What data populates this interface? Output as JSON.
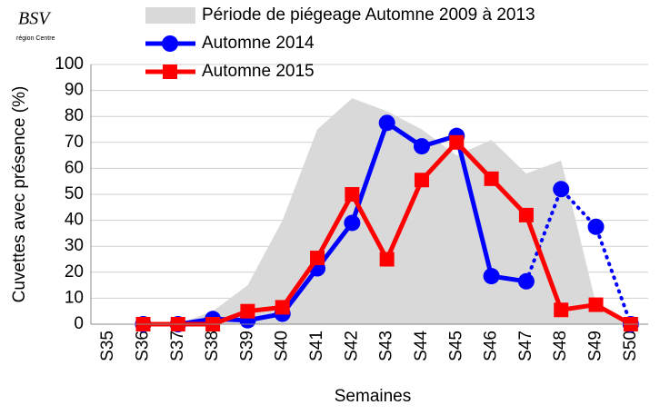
{
  "chart_data": {
    "type": "line",
    "logo": {
      "title": "BSV",
      "subtitle": "région Centre"
    },
    "y_label": "Cuvettes avec présence (%)",
    "x_label": "Semaines",
    "categories": [
      "S35",
      "S36",
      "S37",
      "S38",
      "S39",
      "S40",
      "S41",
      "S42",
      "S43",
      "S44",
      "S45",
      "S46",
      "S47",
      "S48",
      "S49",
      "S50"
    ],
    "series": [
      {
        "name": "Période de piégeage Automne 2009 à 2013",
        "kind": "area",
        "color": "#d9d9d9",
        "values": [
          0,
          0,
          0,
          5,
          15,
          40,
          75,
          87,
          82,
          75,
          65,
          71,
          58,
          63,
          8,
          0
        ]
      },
      {
        "name": "Automne 2014",
        "kind": "line",
        "marker": "circle",
        "color": "#0000ff",
        "dotted_from": "S47",
        "values": [
          null,
          0,
          0,
          2,
          1.5,
          4,
          21.5,
          39,
          77.5,
          68.5,
          72.5,
          18.5,
          16.5,
          52,
          37.5,
          0
        ]
      },
      {
        "name": "Automne 2015",
        "kind": "line",
        "marker": "square",
        "color": "#ff0000",
        "values": [
          null,
          0,
          0,
          0,
          5,
          6.5,
          25.5,
          50,
          25,
          55.5,
          70,
          56,
          42,
          5.5,
          7.5,
          0
        ]
      }
    ],
    "ylim": [
      0,
      100
    ],
    "yticks": [
      0,
      10,
      20,
      30,
      40,
      50,
      60,
      70,
      80,
      90,
      100
    ],
    "grid": true
  }
}
